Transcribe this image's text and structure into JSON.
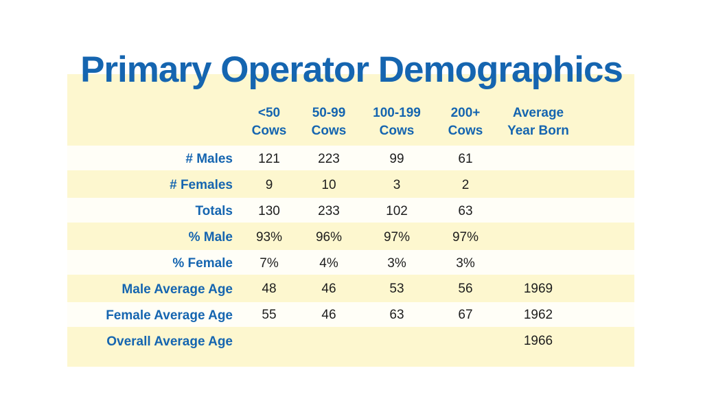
{
  "title": "Primary Operator Demographics",
  "columns": [
    {
      "line1": "<50",
      "line2": "Cows"
    },
    {
      "line1": "50-99",
      "line2": "Cows"
    },
    {
      "line1": "100-199",
      "line2": "Cows"
    },
    {
      "line1": "200+",
      "line2": "Cows"
    },
    {
      "line1": "Average",
      "line2": "Year Born"
    }
  ],
  "rows": [
    {
      "label": "# Males",
      "values": [
        "121",
        "223",
        "99",
        "61",
        ""
      ]
    },
    {
      "label": "# Females",
      "values": [
        "9",
        "10",
        "3",
        "2",
        ""
      ]
    },
    {
      "label": "Totals",
      "values": [
        "130",
        "233",
        "102",
        "63",
        ""
      ]
    },
    {
      "label": "% Male",
      "values": [
        "93%",
        "96%",
        "97%",
        "97%",
        ""
      ]
    },
    {
      "label": "% Female",
      "values": [
        "7%",
        "4%",
        "3%",
        "3%",
        ""
      ]
    },
    {
      "label": "Male Average Age",
      "values": [
        "48",
        "46",
        "53",
        "56",
        "1969"
      ]
    },
    {
      "label": "Female Average Age",
      "values": [
        "55",
        "46",
        "63",
        "67",
        "1962"
      ]
    },
    {
      "label": "Overall Average Age",
      "values": [
        "",
        "",
        "",
        "",
        "1966"
      ]
    }
  ],
  "colors": {
    "title": "#1565b0",
    "panel": "#fdf7cf",
    "band": "#fffef7",
    "text": "#1d1d1d"
  }
}
